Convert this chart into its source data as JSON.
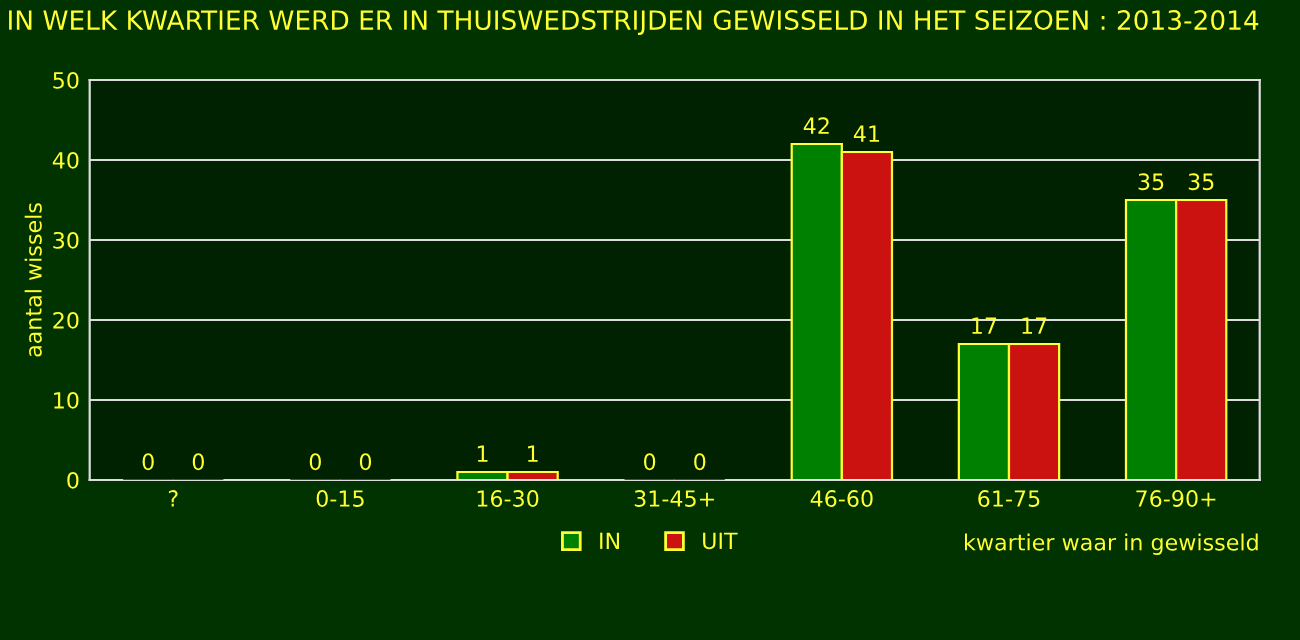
{
  "chart_data": {
    "type": "bar",
    "title": "IN WELK KWARTIER WERD ER IN THUISWEDSTRIJDEN GEWISSELD IN HET SEIZOEN : 2013-2014",
    "xlabel": "kwartier waar in gewisseld",
    "ylabel": "aantal wissels",
    "categories": [
      "?",
      "0-15",
      "16-30",
      "31-45+",
      "46-60",
      "61-75",
      "76-90+"
    ],
    "series": [
      {
        "name": "IN",
        "color": "#008000",
        "values": [
          0,
          0,
          1,
          0,
          42,
          17,
          35
        ]
      },
      {
        "name": "UIT",
        "color": "#cc1111",
        "values": [
          0,
          0,
          1,
          0,
          41,
          17,
          35
        ]
      }
    ],
    "ylim": [
      0,
      50
    ],
    "yticks": [
      0,
      10,
      20,
      30,
      40,
      50
    ],
    "grid": "y",
    "legend": "bottom",
    "data_labels": true
  }
}
